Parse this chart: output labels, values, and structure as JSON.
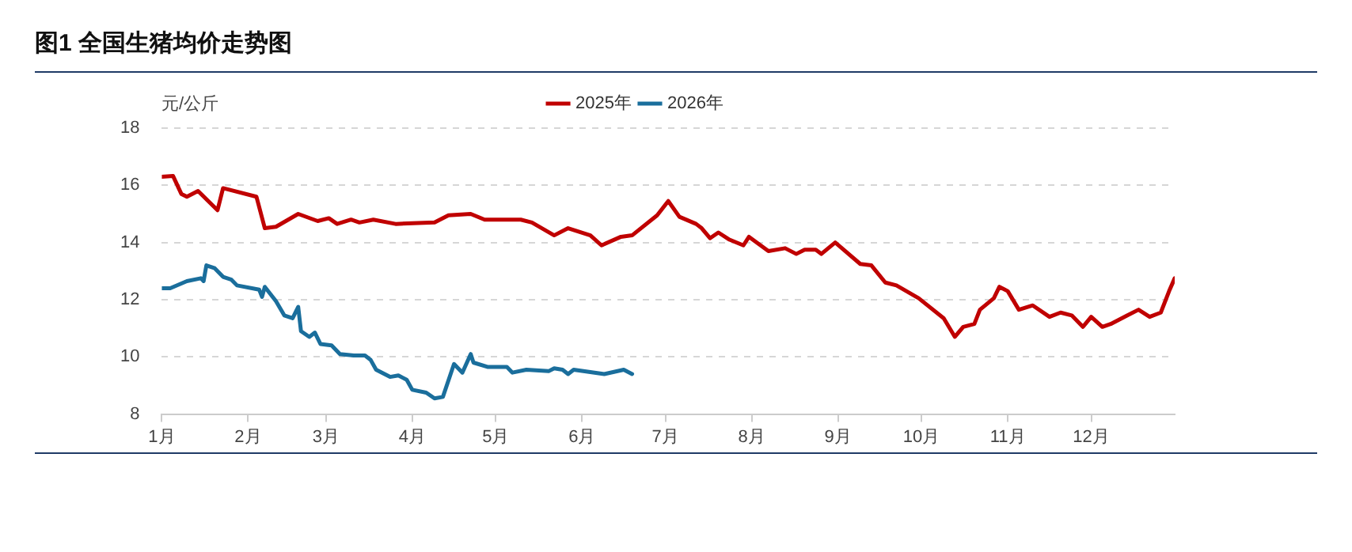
{
  "chart_data": {
    "type": "line",
    "title": "图1 全国生猪均价走势图",
    "ylabel": "元/公斤",
    "xlim": [
      "--01-01",
      "--12-31"
    ],
    "xticks": [
      {
        "value": "--01-01",
        "label": "1月"
      },
      {
        "value": "--02-01",
        "label": "2月"
      },
      {
        "value": "--03-01",
        "label": "3月"
      },
      {
        "value": "--04-01",
        "label": "4月"
      },
      {
        "value": "--05-01",
        "label": "5月"
      },
      {
        "value": "--06-01",
        "label": "6月"
      },
      {
        "value": "--07-01",
        "label": "7月"
      },
      {
        "value": "--08-01",
        "label": "8月"
      },
      {
        "value": "--09-01",
        "label": "9月"
      },
      {
        "value": "--10-01",
        "label": "10月"
      },
      {
        "value": "--11-01",
        "label": "11月"
      },
      {
        "value": "--12-01",
        "label": "12月"
      }
    ],
    "ylim": [
      8,
      18
    ],
    "yticks": [
      8,
      10,
      12,
      14,
      16,
      18
    ],
    "grid": "y",
    "legend": "top",
    "marker": "none",
    "line_style": "solid",
    "series": [
      {
        "name": "2025年",
        "color": "#c00000",
        "x": [
          "--01-01",
          "--01-05",
          "--01-08",
          "--01-10",
          "--01-14",
          "--01-21",
          "--01-23",
          "--02-04",
          "--02-07",
          "--02-11",
          "--02-19",
          "--02-26",
          "--03-02",
          "--03-05",
          "--03-10",
          "--03-13",
          "--03-18",
          "--03-26",
          "--04-09",
          "--04-14",
          "--04-22",
          "--04-27",
          "--05-10",
          "--05-14",
          "--05-22",
          "--05-27",
          "--06-04",
          "--06-08",
          "--06-15",
          "--06-19",
          "--06-28",
          "--07-02",
          "--07-06",
          "--07-12",
          "--07-14",
          "--07-17",
          "--07-20",
          "--07-24",
          "--07-29",
          "--07-31",
          "--08-07",
          "--08-13",
          "--08-17",
          "--08-20",
          "--08-24",
          "--08-26",
          "--08-31",
          "--09-09",
          "--09-13",
          "--09-18",
          "--09-22",
          "--09-30",
          "--10-09",
          "--10-13",
          "--10-16",
          "--10-20",
          "--10-22",
          "--10-27",
          "--10-29",
          "--11-01",
          "--11-05",
          "--11-10",
          "--11-16",
          "--11-20",
          "--11-24",
          "--11-28",
          "--12-01",
          "--12-05",
          "--12-08",
          "--12-14",
          "--12-18",
          "--12-22",
          "--12-26",
          "--12-29",
          "--12-31"
        ],
        "values": [
          16.3,
          16.33,
          15.7,
          15.6,
          15.8,
          15.13,
          15.9,
          15.6,
          14.5,
          14.55,
          15.0,
          14.75,
          14.85,
          14.65,
          14.8,
          14.7,
          14.8,
          14.65,
          14.7,
          14.95,
          15.0,
          14.8,
          14.8,
          14.7,
          14.25,
          14.5,
          14.25,
          13.9,
          14.2,
          14.25,
          14.95,
          15.45,
          14.9,
          14.65,
          14.5,
          14.15,
          14.35,
          14.1,
          13.9,
          14.2,
          13.7,
          13.8,
          13.6,
          13.75,
          13.75,
          13.6,
          14.0,
          13.25,
          13.2,
          12.6,
          12.5,
          12.05,
          11.35,
          10.7,
          11.05,
          11.15,
          11.65,
          12.05,
          12.45,
          12.3,
          11.65,
          11.8,
          11.4,
          11.55,
          11.45,
          11.05,
          11.4,
          11.05,
          11.15,
          11.45,
          11.65,
          11.4,
          11.55,
          12.3,
          12.75
        ]
      },
      {
        "name": "2026年",
        "color": "#1a6e9c",
        "x": [
          "--01-01",
          "--01-04",
          "--01-10",
          "--01-15",
          "--01-16",
          "--01-17",
          "--01-20",
          "--01-23",
          "--01-26",
          "--01-28",
          "--02-05",
          "--02-06",
          "--02-07",
          "--02-11",
          "--02-14",
          "--02-17",
          "--02-19",
          "--02-20",
          "--02-23",
          "--02-25",
          "--02-27",
          "--03-03",
          "--03-06",
          "--03-11",
          "--03-15",
          "--03-17",
          "--03-19",
          "--03-24",
          "--03-27",
          "--03-30",
          "--04-01",
          "--04-06",
          "--04-09",
          "--04-12",
          "--04-16",
          "--04-19",
          "--04-22",
          "--04-23",
          "--04-28",
          "--05-05",
          "--05-07",
          "--05-12",
          "--05-20",
          "--05-22",
          "--05-25",
          "--05-27",
          "--05-29",
          "--06-09",
          "--06-16",
          "--06-19"
        ],
        "values": [
          12.4,
          12.4,
          12.65,
          12.75,
          12.65,
          13.2,
          13.1,
          12.8,
          12.7,
          12.5,
          12.35,
          12.1,
          12.45,
          11.95,
          11.45,
          11.35,
          11.75,
          10.9,
          10.7,
          10.85,
          10.45,
          10.4,
          10.1,
          10.05,
          10.05,
          9.9,
          9.55,
          9.3,
          9.35,
          9.2,
          8.85,
          8.75,
          8.55,
          8.6,
          9.75,
          9.45,
          10.1,
          9.8,
          9.65,
          9.65,
          9.45,
          9.55,
          9.5,
          9.6,
          9.55,
          9.4,
          9.55,
          9.4,
          9.55,
          9.4
        ]
      }
    ]
  }
}
